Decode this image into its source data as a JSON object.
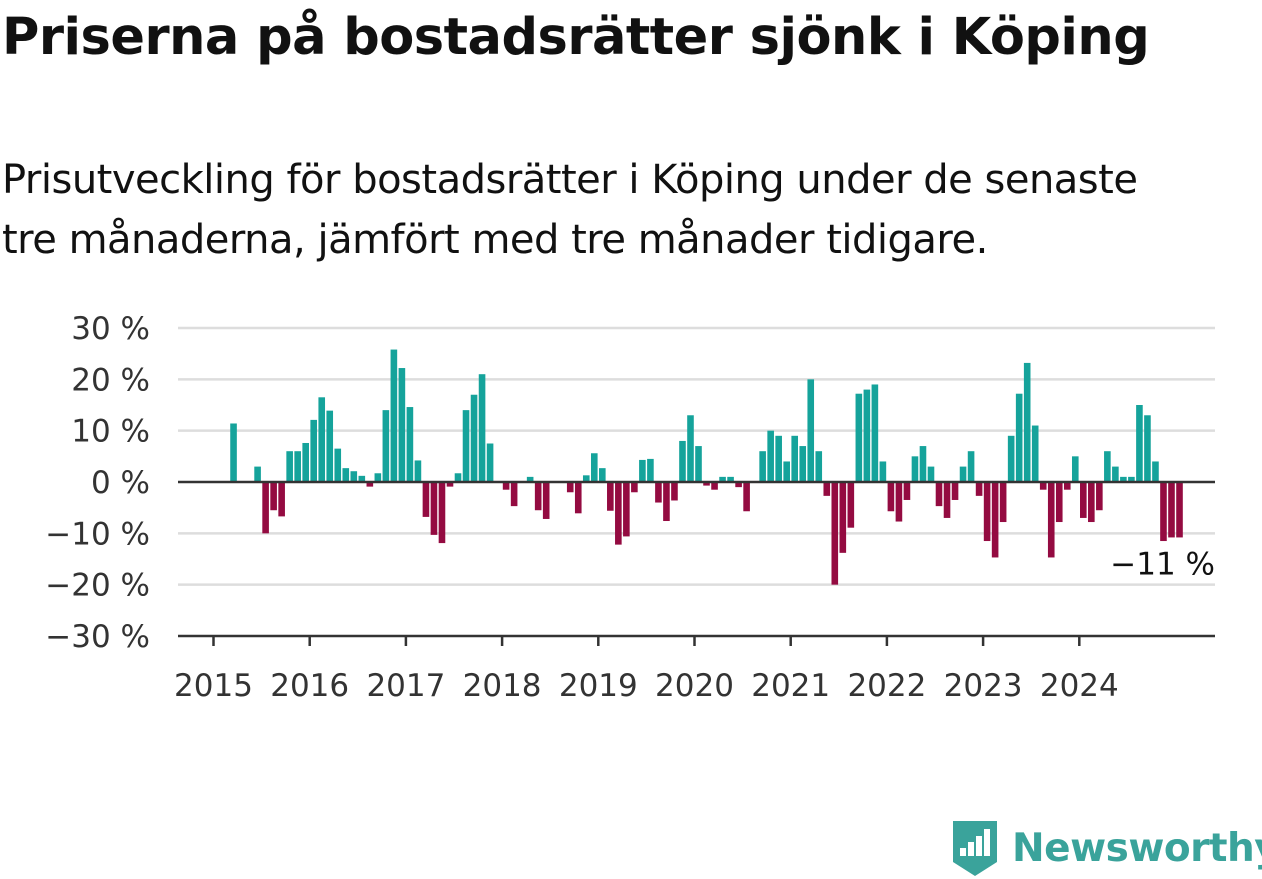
{
  "header": {
    "title": "Priserna på bostadsrätter sjönk i Köping",
    "subtitle_line1": "Prisutveckling för bostadsrätter i Köping under de senaste",
    "subtitle_line2": "tre månaderna, jämfört med tre månader tidigare."
  },
  "colors": {
    "positive": "#15a39b",
    "negative": "#940b41",
    "grid": "#dddddd",
    "axis": "#333333",
    "logo": "#3aa39b"
  },
  "chart_data": {
    "type": "bar",
    "x_start": "2015-01",
    "ylim": [
      -30,
      30
    ],
    "y_ticks": [
      30,
      20,
      10,
      0,
      -10,
      -20,
      -30
    ],
    "y_tick_labels": [
      "30 %",
      "20 %",
      "10 %",
      "0 %",
      "−10 %",
      "−20 %",
      "−30 %"
    ],
    "x_tick_labels": [
      "2015",
      "2016",
      "2017",
      "2018",
      "2019",
      "2020",
      "2021",
      "2022",
      "2023",
      "2024"
    ],
    "grid": "horizontal",
    "values": [
      null,
      null,
      11.4,
      null,
      null,
      3.0,
      -10.0,
      -5.5,
      -6.7,
      6.0,
      6.0,
      7.6,
      12.1,
      16.5,
      13.9,
      6.5,
      2.7,
      2.1,
      1.2,
      -0.9,
      1.7,
      14.0,
      25.8,
      22.2,
      14.6,
      4.2,
      -6.8,
      -10.3,
      -11.9,
      -0.9,
      1.7,
      14.0,
      17.0,
      21.0,
      7.5,
      null,
      -1.5,
      -4.7,
      null,
      1.0,
      -5.5,
      -7.2,
      null,
      null,
      -2.0,
      -6.1,
      1.3,
      5.6,
      2.7,
      -5.6,
      -12.2,
      -10.6,
      -2.0,
      4.3,
      4.5,
      -4.0,
      -7.6,
      -3.6,
      8.0,
      13.0,
      7.0,
      -0.7,
      -1.5,
      1.0,
      1.0,
      -1.0,
      -5.7,
      null,
      6.0,
      10.0,
      9.0,
      4.0,
      9.0,
      7.0,
      20.0,
      6.0,
      -2.7,
      -20.0,
      -13.8,
      -8.9,
      17.2,
      18.0,
      19.0,
      4.0,
      -5.7,
      -7.7,
      -3.5,
      5.0,
      7.0,
      3.0,
      -4.7,
      -7.0,
      -3.5,
      3.0,
      6.0,
      -2.7,
      -11.5,
      -14.7,
      -7.8,
      9.0,
      17.2,
      23.2,
      11.0,
      -1.5,
      -14.7,
      -7.8,
      -1.5,
      5.0,
      -7.0,
      -7.8,
      -5.5,
      6.0,
      3.0,
      1.0,
      1.0,
      15.0,
      13.0,
      4.0,
      -11.5,
      -10.8,
      -10.8
    ],
    "annotations": [
      {
        "text": "−11 %"
      }
    ]
  },
  "logo": {
    "text": "Newsworthy",
    "icon": "newsworthy-logo-icon"
  }
}
